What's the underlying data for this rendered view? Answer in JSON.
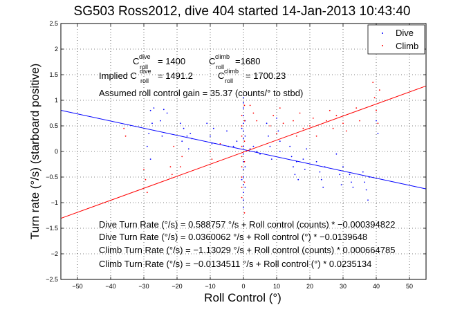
{
  "chart_data": {
    "type": "scatter",
    "title": "SG503 Ross2012, dive 404 started 14-Jan-2013 10:43:40",
    "xlabel": "Roll Control (°)",
    "ylabel": "Turn rate (°/s) (starboard positive)",
    "xlim": [
      -55,
      55
    ],
    "ylim": [
      -2.5,
      2.5
    ],
    "xticks": [
      -50,
      -40,
      -30,
      -20,
      -10,
      0,
      10,
      20,
      30,
      40,
      50
    ],
    "yticks": [
      -2.5,
      -2,
      -1.5,
      -1,
      -0.5,
      0,
      0.5,
      1,
      1.5,
      2,
      2.5
    ],
    "xtick_labels": [
      "−50",
      "−40",
      "−30",
      "−20",
      "−10",
      "0",
      "10",
      "20",
      "30",
      "40",
      "50"
    ],
    "ytick_labels": [
      "−2.5",
      "−2",
      "−1.5",
      "−1",
      "−0.5",
      "0",
      "0.5",
      "1",
      "1.5",
      "2",
      "2.5"
    ],
    "grid": true,
    "legend_position": "top-right",
    "series": [
      {
        "name": "Dive",
        "color": "#0000ff",
        "points": [
          [
            -28,
            0.8
          ],
          [
            -27.5,
            0.55
          ],
          [
            -28.5,
            0.35
          ],
          [
            -29,
            0.1
          ],
          [
            -28,
            -0.15
          ],
          [
            -27,
            0.85
          ],
          [
            -24,
            0.82
          ],
          [
            -25,
            0.6
          ],
          [
            -24.5,
            0.3
          ],
          [
            -23,
            0.75
          ],
          [
            -19,
            0.55
          ],
          [
            -18,
            0.45
          ],
          [
            -17,
            0.3
          ],
          [
            -18.5,
            0.2
          ],
          [
            -16,
            0.35
          ],
          [
            -16.5,
            0.05
          ],
          [
            -15.5,
            0.25
          ],
          [
            -11,
            0.55
          ],
          [
            -10,
            0.3
          ],
          [
            -9,
            0.45
          ],
          [
            -9.5,
            0.15
          ],
          [
            -5,
            0.4
          ],
          [
            -4.5,
            0.1
          ],
          [
            -3,
            0.1
          ],
          [
            -2,
            0.2
          ],
          [
            0,
            1.05
          ],
          [
            0,
            0.95
          ],
          [
            0,
            0.85
          ],
          [
            0,
            0.7
          ],
          [
            0,
            0.55
          ],
          [
            0,
            0.4
          ],
          [
            0,
            0.25
          ],
          [
            0,
            0.1
          ],
          [
            0,
            -0.05
          ],
          [
            0,
            -0.2
          ],
          [
            0,
            -0.35
          ],
          [
            0,
            -0.5
          ],
          [
            0,
            -0.65
          ],
          [
            0,
            -0.8
          ],
          [
            0,
            -0.95
          ],
          [
            0,
            -1.1
          ],
          [
            0.5,
            0.6
          ],
          [
            0.5,
            0.3
          ],
          [
            0.5,
            -0.3
          ],
          [
            0.5,
            -0.7
          ],
          [
            -0.5,
            0.45
          ],
          [
            -0.5,
            -0.55
          ],
          [
            2,
            0.05
          ],
          [
            3,
            0.1
          ],
          [
            4,
            0.0
          ],
          [
            5,
            -0.05
          ],
          [
            7,
            0.55
          ],
          [
            7.5,
            0.3
          ],
          [
            8,
            0.1
          ],
          [
            8.5,
            -0.15
          ],
          [
            10,
            0.65
          ],
          [
            10.5,
            0.4
          ],
          [
            11,
            0.2
          ],
          [
            11,
            0.0
          ],
          [
            14,
            0.1
          ],
          [
            14.5,
            -0.1
          ],
          [
            15,
            -0.3
          ],
          [
            15.5,
            -0.45
          ],
          [
            16,
            -0.2
          ],
          [
            16.5,
            -0.55
          ],
          [
            18,
            -0.15
          ],
          [
            18.5,
            -0.35
          ],
          [
            19,
            0.05
          ],
          [
            22,
            -0.2
          ],
          [
            23,
            -0.4
          ],
          [
            23.5,
            -0.55
          ],
          [
            24,
            -0.7
          ],
          [
            24.5,
            -0.3
          ],
          [
            28,
            -0.05
          ],
          [
            29,
            -0.45
          ],
          [
            29.5,
            -0.65
          ],
          [
            30,
            -0.3
          ],
          [
            32,
            -0.45
          ],
          [
            32.5,
            -0.6
          ],
          [
            33,
            -0.7
          ],
          [
            36,
            -0.4
          ],
          [
            36.5,
            -0.6
          ],
          [
            37,
            -0.75
          ],
          [
            37.5,
            -0.95
          ],
          [
            38,
            -0.5
          ],
          [
            40,
            0.6
          ],
          [
            40.5,
            0.35
          ]
        ]
      },
      {
        "name": "Climb",
        "color": "#ff0000",
        "points": [
          [
            -36,
            0.45
          ],
          [
            -35.5,
            0.3
          ],
          [
            -30,
            -0.35
          ],
          [
            -29.5,
            -0.55
          ],
          [
            -29,
            -0.8
          ],
          [
            -22,
            -0.3
          ],
          [
            -21.5,
            -0.45
          ],
          [
            -21,
            0.1
          ],
          [
            -19,
            -0.3
          ],
          [
            -18.5,
            -0.1
          ],
          [
            -10,
            0.0
          ],
          [
            -9.5,
            -0.15
          ],
          [
            -7,
            0.15
          ],
          [
            -0.5,
            0.7
          ],
          [
            -0.5,
            0.5
          ],
          [
            -0.5,
            0.3
          ],
          [
            -0.5,
            0.1
          ],
          [
            -0.5,
            -0.1
          ],
          [
            -0.5,
            -0.3
          ],
          [
            -0.5,
            -0.5
          ],
          [
            -0.5,
            -0.7
          ],
          [
            -0.5,
            -0.9
          ],
          [
            0.3,
            0.6
          ],
          [
            0.3,
            0.2
          ],
          [
            0.3,
            -0.2
          ],
          [
            0.3,
            -0.6
          ],
          [
            0.3,
            -1.2
          ],
          [
            0.3,
            0.9
          ],
          [
            2,
            0.9
          ],
          [
            3,
            0.75
          ],
          [
            4,
            0.6
          ],
          [
            8,
            0.5
          ],
          [
            9,
            0.7
          ],
          [
            10,
            0.35
          ],
          [
            11,
            0.85
          ],
          [
            12,
            0.55
          ],
          [
            15,
            0.6
          ],
          [
            16,
            0.3
          ],
          [
            17,
            0.75
          ],
          [
            18,
            0.45
          ],
          [
            20,
            0.5
          ],
          [
            21,
            0.65
          ],
          [
            22,
            0.3
          ],
          [
            25,
            0.6
          ],
          [
            26,
            0.8
          ],
          [
            27,
            0.45
          ],
          [
            28,
            0.7
          ],
          [
            30,
            0.55
          ],
          [
            31,
            0.4
          ],
          [
            34,
            0.85
          ],
          [
            35,
            0.6
          ],
          [
            39,
            1.35
          ],
          [
            39.5,
            1.05
          ],
          [
            40,
            0.8
          ],
          [
            40.5,
            0.55
          ],
          [
            41,
            1.2
          ]
        ]
      }
    ],
    "fit_lines": [
      {
        "name": "Dive fit",
        "color": "#0000ff",
        "slope": -0.0139648,
        "intercept": 0.0360062
      },
      {
        "name": "Climb fit",
        "color": "#ff0000",
        "slope": 0.0235134,
        "intercept": -0.0134511
      }
    ],
    "annotations": {
      "c_dive_label": "C",
      "c_dive_sup": "dive",
      "c_dive_sub": "roll",
      "c_dive_val": "= 1400",
      "c_climb_label": "C",
      "c_climb_sup": "climb",
      "c_climb_sub": "roll",
      "c_climb_val": "=1680",
      "implied_prefix": "Implied C",
      "implied_dive_sup": "dive",
      "implied_dive_sub": "roll",
      "implied_dive_val": "= 1491.2",
      "implied_climb_c": "C",
      "implied_climb_sup": "climb",
      "implied_climb_sub": "roll",
      "implied_climb_val": "= 1700.23",
      "gain_line": "Assumed roll control gain = 35.37 (counts/° to stbd)",
      "eq1": "Dive Turn Rate (°/s) = 0.588757 °/s + Roll control (counts) * −0.000394822",
      "eq2": "Dive Turn Rate (°/s) = 0.0360062 °/s + Roll control (°) * −0.0139648",
      "eq3": "Climb Turn Rate (°/s) = −1.13029 °/s + Roll control (counts) * 0.000664785",
      "eq4": "Climb Turn Rate (°/s) = −0.0134511 °/s + Roll control (°) * 0.0235134"
    }
  }
}
